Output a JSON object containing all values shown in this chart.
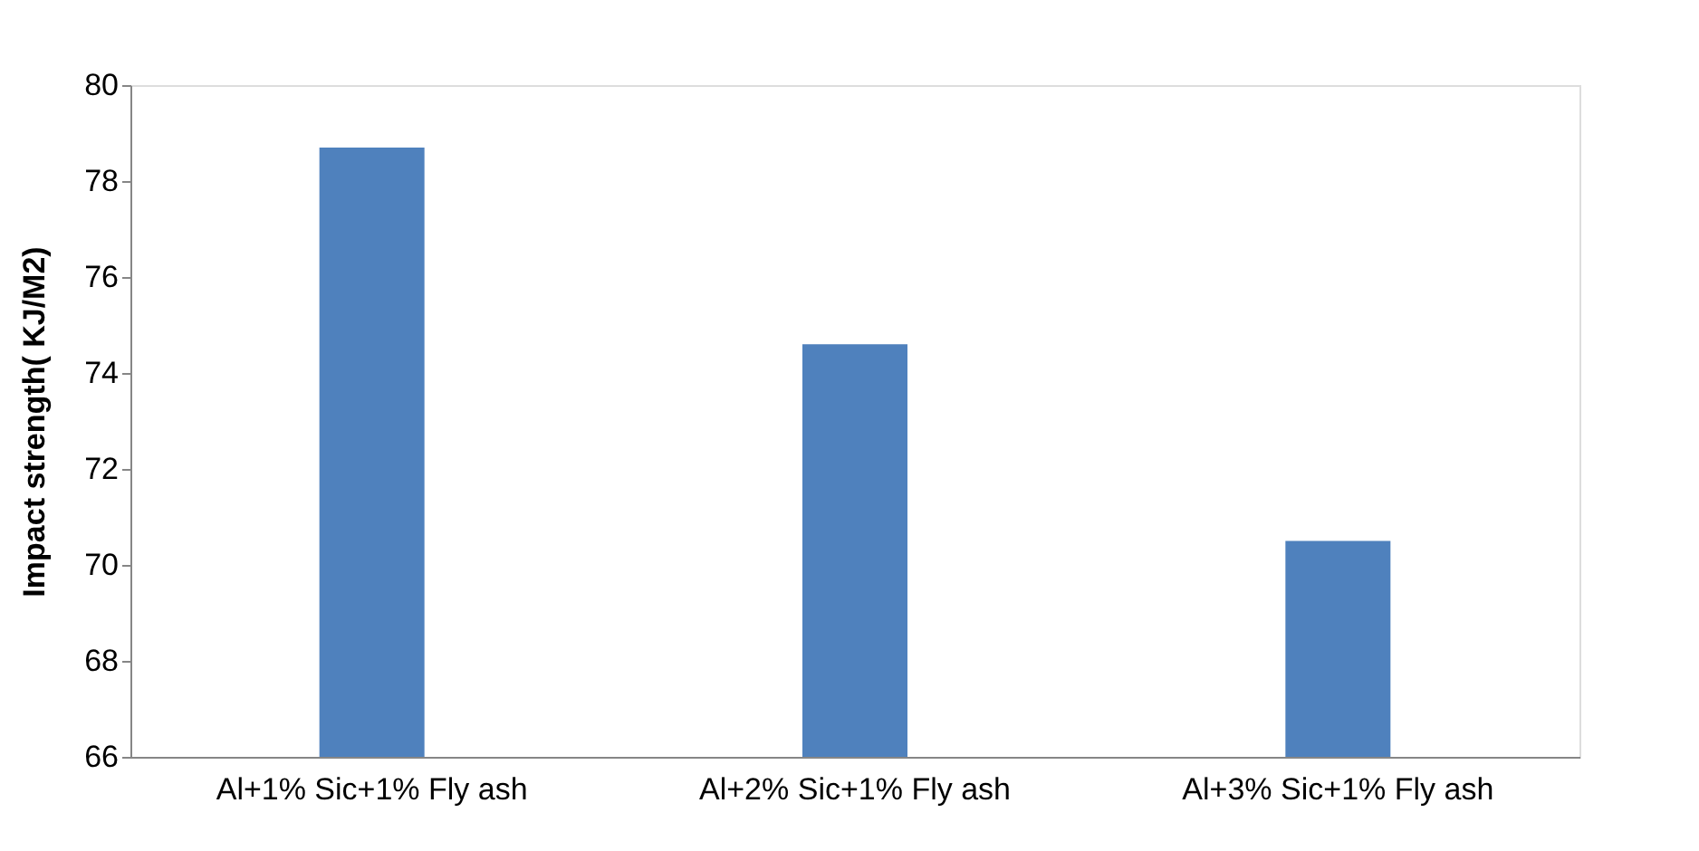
{
  "chart_data": {
    "type": "bar",
    "ylabel": "Impact strength( KJ/M2)",
    "categories": [
      "Al+1% Sic+1% Fly ash",
      "Al+2% Sic+1% Fly ash",
      "Al+3% Sic+1% Fly ash"
    ],
    "values": [
      78.7,
      74.6,
      70.5
    ],
    "color": "#4f81bd",
    "ylim": [
      66,
      80
    ],
    "yticks": [
      66,
      68,
      70,
      72,
      74,
      76,
      78,
      80
    ],
    "grid": false
  }
}
